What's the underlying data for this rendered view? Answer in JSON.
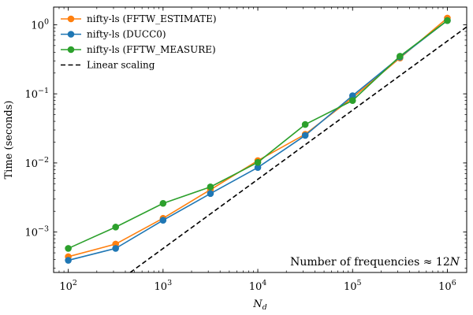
{
  "chart_data": {
    "type": "line",
    "title": "",
    "xlabel": "N_d",
    "ylabel": "Time (seconds)",
    "x_scale": "log",
    "y_scale": "log",
    "xlim": [
      70,
      1600000
    ],
    "ylim": [
      0.00026,
      1.8
    ],
    "x_ticks": [
      {
        "value": 100,
        "base": "10",
        "exp": "2"
      },
      {
        "value": 1000,
        "base": "10",
        "exp": "3"
      },
      {
        "value": 10000,
        "base": "10",
        "exp": "4"
      },
      {
        "value": 100000,
        "base": "10",
        "exp": "5"
      },
      {
        "value": 1000000,
        "base": "10",
        "exp": "6"
      }
    ],
    "y_ticks": [
      {
        "value": 0.001,
        "base": "10",
        "exp": "−3"
      },
      {
        "value": 0.01,
        "base": "10",
        "exp": "−2"
      },
      {
        "value": 0.1,
        "base": "10",
        "exp": "−1"
      },
      {
        "value": 1,
        "base": "10",
        "exp": "0"
      }
    ],
    "legend_position": "top-left",
    "grid": false,
    "series": [
      {
        "name": "nifty-ls (FFTW_ESTIMATE)",
        "color": "#ff7f0e",
        "style": "solid-marker",
        "points": [
          [
            100,
            0.00044
          ],
          [
            316,
            0.00067
          ],
          [
            1000,
            0.00158
          ],
          [
            3162,
            0.0041
          ],
          [
            10000,
            0.0108
          ],
          [
            31623,
            0.026
          ],
          [
            100000,
            0.088
          ],
          [
            316228,
            0.33
          ],
          [
            1000000,
            1.25
          ]
        ]
      },
      {
        "name": "nifty-ls (DUCC0)",
        "color": "#1f77b4",
        "style": "solid-marker",
        "points": [
          [
            100,
            0.00039
          ],
          [
            316,
            0.00058
          ],
          [
            1000,
            0.00148
          ],
          [
            3162,
            0.0036
          ],
          [
            10000,
            0.0086
          ],
          [
            31623,
            0.025
          ],
          [
            100000,
            0.094
          ],
          [
            316228,
            0.34
          ],
          [
            1000000,
            1.15
          ]
        ]
      },
      {
        "name": "nifty-ls (FFTW_MEASURE)",
        "color": "#2ca02c",
        "style": "solid-marker",
        "points": [
          [
            100,
            0.00058
          ],
          [
            316,
            0.00118
          ],
          [
            1000,
            0.0026
          ],
          [
            3162,
            0.0045
          ],
          [
            10000,
            0.0102
          ],
          [
            31623,
            0.036
          ],
          [
            100000,
            0.08
          ],
          [
            316228,
            0.35
          ],
          [
            1000000,
            1.15
          ]
        ]
      },
      {
        "name": "Linear scaling",
        "color": "#000000",
        "style": "dashed",
        "points": [
          [
            450,
            0.00026
          ],
          [
            1600000,
            0.93
          ]
        ]
      }
    ],
    "annotation": {
      "text_prefix": "Number of frequencies ≈ 12",
      "text_var": "N"
    }
  }
}
